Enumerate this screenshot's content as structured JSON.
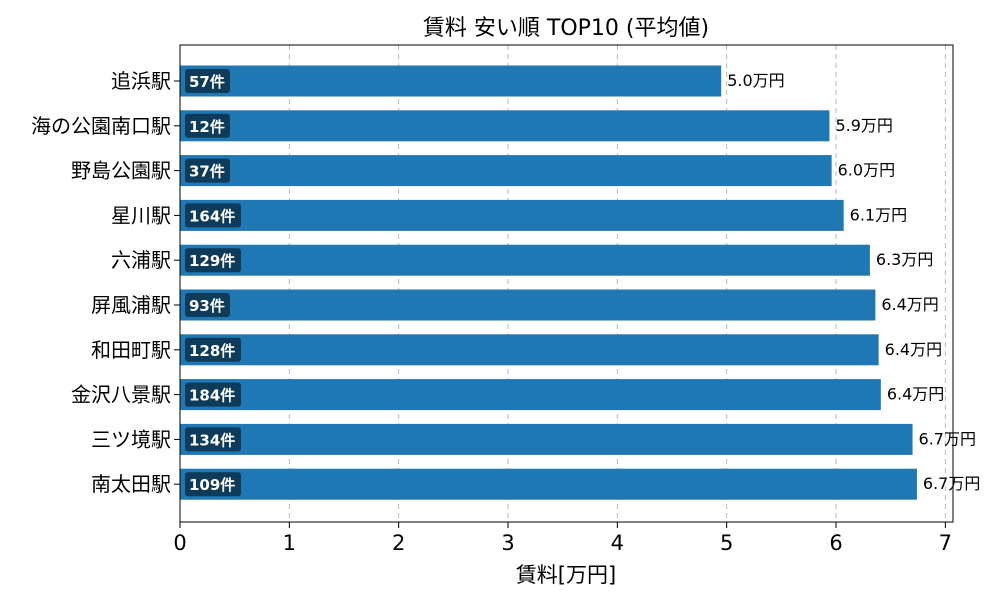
{
  "chart_data": {
    "type": "bar",
    "orientation": "horizontal",
    "title": "賃料 安い順 TOP10 (平均値)",
    "xlabel": "賃料[万円]",
    "ylabel": "",
    "xlim": [
      0,
      7.07
    ],
    "xticks": [
      "0",
      "1",
      "2",
      "3",
      "4",
      "5",
      "6",
      "7"
    ],
    "grid": "x-dashed",
    "bar_color": "#1f77b4",
    "badge_color": "#0d3b59",
    "categories": [
      "追浜駅",
      "海の公園南口駅",
      "野島公園駅",
      "星川駅",
      "六浦駅",
      "屏風浦駅",
      "和田町駅",
      "金沢八景駅",
      "三ツ境駅",
      "南太田駅"
    ],
    "values": [
      4.95,
      5.94,
      5.96,
      6.07,
      6.31,
      6.36,
      6.39,
      6.41,
      6.7,
      6.74
    ],
    "value_labels": [
      "5.0万円",
      "5.9万円",
      "6.0万円",
      "6.1万円",
      "6.3万円",
      "6.4万円",
      "6.4万円",
      "6.4万円",
      "6.7万円",
      "6.7万円"
    ],
    "counts": [
      "57件",
      "12件",
      "37件",
      "164件",
      "129件",
      "93件",
      "128件",
      "184件",
      "134件",
      "109件"
    ]
  }
}
